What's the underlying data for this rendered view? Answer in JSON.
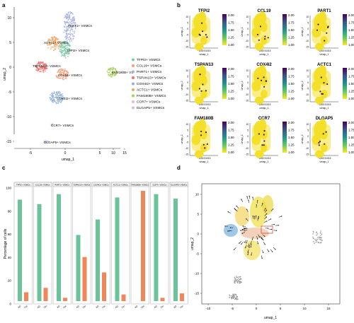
{
  "panels": {
    "a": {
      "letter": "a",
      "xlabel": "umap_1",
      "ylabel": "umap_2",
      "xticks": [
        "-5",
        "0",
        "5",
        "10",
        "15"
      ],
      "yticks": [
        "10",
        "5",
        "0",
        "-5",
        "-10",
        "-15"
      ],
      "cluster_labels": [
        "PART1+ VSMCs",
        "ACTC1+ VSMCs",
        "TFPI2+ VSMCs",
        "TSPAN13+ VSMCs",
        "CCL19+ VSMCs",
        "COX4I2+ VSMCs",
        "FAM180B+ VS",
        "CCR7+ VSMCs",
        "DLGAP5+ VSMCs"
      ],
      "legend": [
        {
          "label": "TFPI2+ VSMCs",
          "color": "#7ec9a8"
        },
        {
          "label": "CCL19+ VSMCs",
          "color": "#f2a07b"
        },
        {
          "label": "PART1+ VSMCs",
          "color": "#a7aee0"
        },
        {
          "label": "TSPAN13+ VSMCs",
          "color": "#ef6f6c"
        },
        {
          "label": "COX4I2+ VSMCs",
          "color": "#8fb3d9"
        },
        {
          "label": "ACTC1+ VSMCs",
          "color": "#f0a35e"
        },
        {
          "label": "FAM180B+ VSMCs",
          "color": "#a6cf5a"
        },
        {
          "label": "CCR7+ VSMCs",
          "color": "#f4b6c9"
        },
        {
          "label": "DLGAP5+ VSMCs",
          "color": "#c9c3e6"
        }
      ]
    },
    "b": {
      "letter": "b",
      "genes": [
        "TFPI2",
        "CCL19",
        "PART1",
        "TSPAN13",
        "COX4I2",
        "ACTC1",
        "FAM180B",
        "CCR7",
        "DLGAP5"
      ],
      "xlabel": "umap_1",
      "ylabel": "umap_2",
      "yticks": [
        "10",
        "5",
        "0",
        "-5",
        "-10",
        "-15"
      ],
      "xticks": "−1050 51015",
      "colorbar_ticks": [
        "2.00",
        "1.75",
        "1.50",
        "1.25",
        "1.00"
      ]
    },
    "c": {
      "letter": "c",
      "ylabel": "Percentage of cells",
      "yticks": [
        "100",
        "80",
        "60",
        "40",
        "20",
        "0"
      ],
      "groups": [
        "TFPI2+ VSMCs",
        "CCL19+ VSMCs",
        "PART1+ VSMCs",
        "TSPAN13+ VSMCs",
        "COX4I2+ VSMCs",
        "ACTC1+ VSMCs",
        "FAM180B+ VSMCs",
        "CCR7+ VSMCs",
        "DLGAP5+ VSMCs"
      ],
      "bar_labels": [
        "AD",
        "Ctrl"
      ],
      "colors": {
        "green": "#6cc39a",
        "orange": "#f0875a"
      }
    },
    "d": {
      "letter": "d",
      "xlabel": "umap_1",
      "ylabel": "umap_2",
      "xticks": [
        "-10",
        "-5",
        "0",
        "5",
        "10",
        "15"
      ],
      "yticks": [
        "10",
        "5",
        "0",
        "-5",
        "-10",
        "-15"
      ]
    }
  },
  "chart_data": {
    "type": "bar",
    "categories": [
      "TFPI2+ VSMCs",
      "CCL19+ VSMCs",
      "PART1+ VSMCs",
      "TSPAN13+ VSMCs",
      "COX4I2+ VSMCs",
      "ACTC1+ VSMCs",
      "FAM180B+ VSMCs",
      "CCR7+ VSMCs",
      "DLGAP5+ VSMCs"
    ],
    "series": [
      {
        "values": [
          92,
          88,
          97,
          60,
          74,
          94,
          0,
          97,
          93
        ]
      },
      {
        "values": [
          8,
          12,
          3,
          40,
          26,
          6,
          100,
          3,
          7
        ]
      }
    ],
    "ylabel": "Percentage of cells",
    "ylim": [
      0,
      100
    ]
  }
}
